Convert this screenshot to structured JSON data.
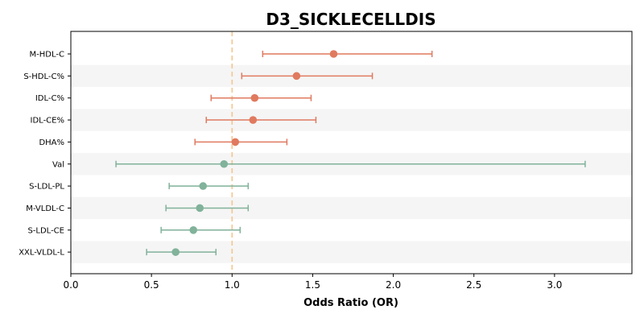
{
  "chart_data": {
    "type": "forest",
    "title": "D3_SICKLECELLDIS",
    "xlabel": "Odds Ratio (OR)",
    "ylabel": "",
    "xlim": [
      0,
      3.48
    ],
    "xticks": [
      "0.0",
      "0.5",
      "1.0",
      "1.5",
      "2.0",
      "2.5",
      "3.0"
    ],
    "reference_line": 1.0,
    "reference_color": "#f5c58e",
    "band_color": "#f5f5f5",
    "rows": [
      {
        "label": "M-HDL-C",
        "or": 1.63,
        "lower": 1.19,
        "upper": 2.24,
        "color": "#e07a5f"
      },
      {
        "label": "S-HDL-C%",
        "or": 1.4,
        "lower": 1.06,
        "upper": 1.87,
        "color": "#e07a5f"
      },
      {
        "label": "IDL-C%",
        "or": 1.14,
        "lower": 0.87,
        "upper": 1.49,
        "color": "#e07a5f"
      },
      {
        "label": "IDL-CE%",
        "or": 1.13,
        "lower": 0.84,
        "upper": 1.52,
        "color": "#e07a5f"
      },
      {
        "label": "DHA%",
        "or": 1.02,
        "lower": 0.77,
        "upper": 1.34,
        "color": "#e07a5f"
      },
      {
        "label": "Val",
        "or": 0.95,
        "lower": 0.28,
        "upper": 3.19,
        "color": "#81b29a"
      },
      {
        "label": "S-LDL-PL",
        "or": 0.82,
        "lower": 0.61,
        "upper": 1.1,
        "color": "#81b29a"
      },
      {
        "label": "M-VLDL-C",
        "or": 0.8,
        "lower": 0.59,
        "upper": 1.1,
        "color": "#81b29a"
      },
      {
        "label": "S-LDL-CE",
        "or": 0.76,
        "lower": 0.56,
        "upper": 1.05,
        "color": "#81b29a"
      },
      {
        "label": "XXL-VLDL-L",
        "or": 0.65,
        "lower": 0.47,
        "upper": 0.9,
        "color": "#81b29a"
      }
    ]
  }
}
